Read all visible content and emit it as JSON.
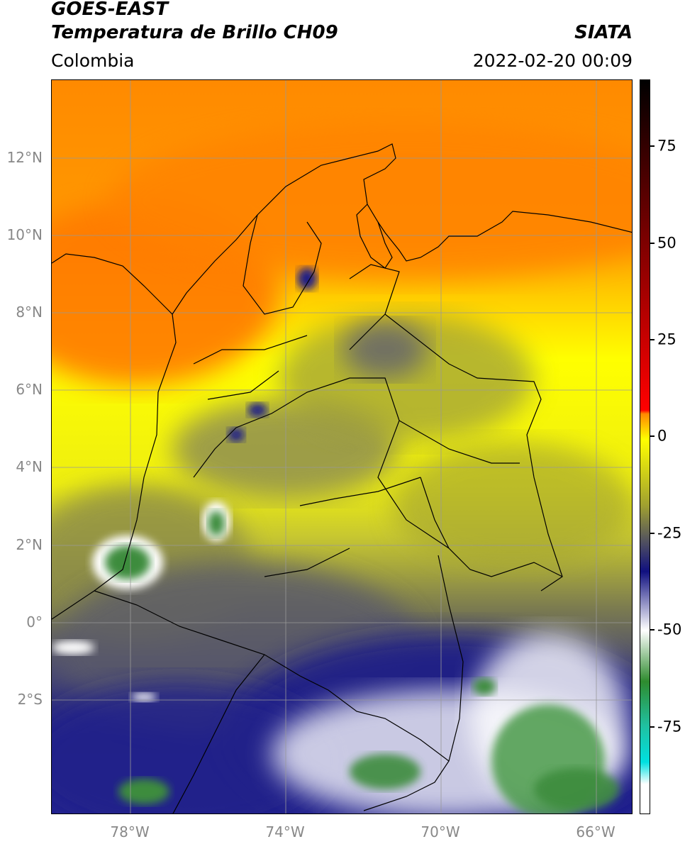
{
  "header": {
    "title_line1": "GOES-EAST",
    "title_line2": "Temperatura de Brillo CH09",
    "organization": "SIATA",
    "region": "Colombia",
    "timestamp": "2022-02-20 00:09"
  },
  "map": {
    "latitude_labels": [
      "12°N",
      "10°N",
      "8°N",
      "6°N",
      "4°N",
      "2°N",
      "0°",
      "2°S"
    ],
    "longitude_labels": [
      "78°W",
      "74°W",
      "70°W",
      "66°W"
    ],
    "colors": {
      "background_warm": "#f5a000",
      "orange": "#ff7a00",
      "yellow": "#ffff00",
      "olive": "#a8a830",
      "slate": "#5a5a6a",
      "navy": "#1a1a80",
      "white_cloud": "#f4f4fa",
      "green_cloud": "#3c8c3c",
      "grid": "#999999",
      "border": "#000000"
    }
  },
  "colorbar": {
    "tick_labels": [
      "75",
      "50",
      "25",
      "0",
      "-25",
      "-50",
      "-75"
    ],
    "colors": [
      "#000000",
      "#ff0000",
      "#ff8800",
      "#ffff00",
      "#a0a030",
      "#505060",
      "#101080",
      "#ffffff",
      "#2e8b2e",
      "#20c0a0",
      "#00e0e0",
      "#ffffff"
    ]
  }
}
